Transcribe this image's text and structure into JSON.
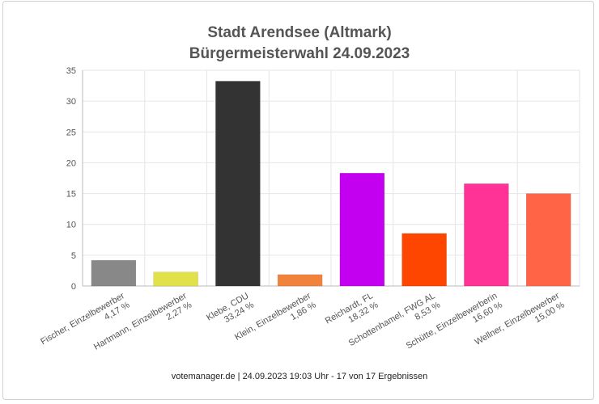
{
  "chart_data": {
    "type": "bar",
    "title": "Stadt Arendsee (Altmark)",
    "subtitle": "Bürgermeisterwahl 24.09.2023",
    "categories": [
      "Fischer, Einzelbewerber",
      "Hartmann, Einzelbewerber",
      "Klebe, CDU",
      "Klein, Einzelbewerber",
      "Reichardt, FL",
      "Schottenhamel, FWG AL",
      "Schütte, Einzelbewerberin",
      "Wellner, Einzelbewerber"
    ],
    "value_labels": [
      "4,17 %",
      "2,27 %",
      "33,24 %",
      "1,86 %",
      "18,32 %",
      "8,53 %",
      "16,60 %",
      "15,00 %"
    ],
    "values": [
      4.17,
      2.27,
      33.24,
      1.86,
      18.32,
      8.53,
      16.6,
      15.0
    ],
    "colors": [
      "#888888",
      "#e1e14b",
      "#333333",
      "#f0823c",
      "#c300f0",
      "#ff4600",
      "#ff3296",
      "#ff6446"
    ],
    "ylim": [
      0,
      35
    ],
    "yticks": [
      0,
      5,
      10,
      15,
      20,
      25,
      30,
      35
    ],
    "grid": true,
    "legend": "none",
    "xlabel": "",
    "ylabel": ""
  },
  "footer": "votemanager.de | 24.09.2023 19:03 Uhr - 17 von 17 Ergebnissen"
}
